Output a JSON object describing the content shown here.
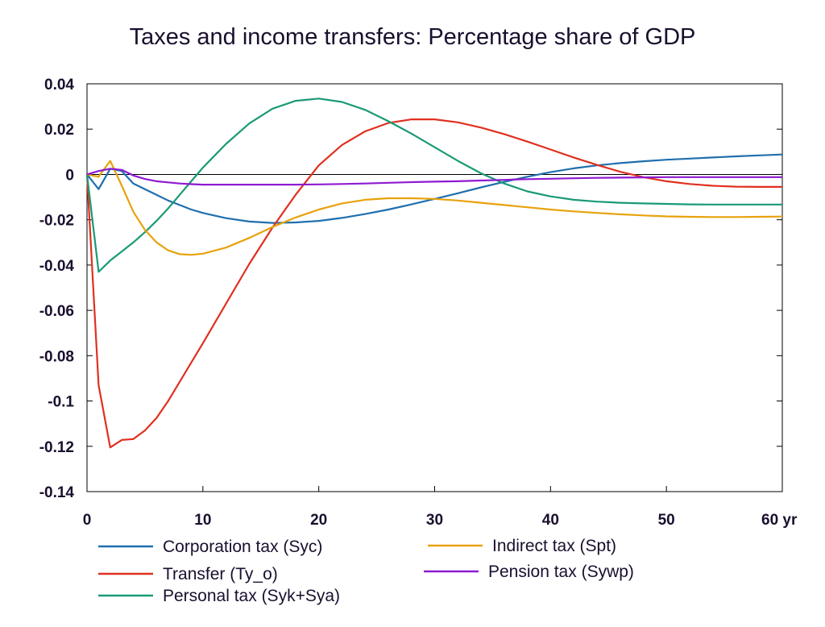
{
  "chart_data": {
    "type": "line",
    "title": "Taxes and income transfers: Percentage share of GDP",
    "xlabel": "",
    "ylabel": "",
    "x_unit_suffix": "yr",
    "xlim": [
      0,
      60
    ],
    "ylim": [
      -0.14,
      0.04
    ],
    "x_ticks": [
      0,
      10,
      20,
      30,
      40,
      50,
      60
    ],
    "x_tick_labels": [
      "0",
      "10",
      "20",
      "30",
      "40",
      "50",
      "60 yr"
    ],
    "y_ticks": [
      0.04,
      0.02,
      0,
      -0.02,
      -0.04,
      -0.06,
      -0.08,
      -0.1,
      -0.12,
      -0.14
    ],
    "y_tick_labels": [
      "0.04",
      "0.02",
      "0",
      "-0.02",
      "-0.04",
      "-0.06",
      "-0.08",
      "-0.1",
      "-0.12",
      "-0.14"
    ],
    "grid": false,
    "zero_line": true,
    "legend_position": "bottom",
    "x": [
      0,
      1,
      2,
      3,
      4,
      5,
      6,
      7,
      8,
      9,
      10,
      12,
      14,
      16,
      18,
      20,
      22,
      24,
      26,
      28,
      30,
      32,
      34,
      36,
      38,
      40,
      42,
      44,
      46,
      48,
      50,
      52,
      54,
      56,
      58,
      60
    ],
    "series": [
      {
        "name": "Corporation tax (Syc)",
        "color": "#1f6fae",
        "values": [
          0,
          -0.0065,
          0.0025,
          0.0015,
          -0.004,
          -0.0065,
          -0.009,
          -0.0115,
          -0.0135,
          -0.0155,
          -0.017,
          -0.0193,
          -0.0208,
          -0.0214,
          -0.0212,
          -0.0205,
          -0.0192,
          -0.0175,
          -0.0155,
          -0.0132,
          -0.0108,
          -0.0083,
          -0.0057,
          -0.0033,
          -0.001,
          0.001,
          0.0027,
          0.004,
          0.005,
          0.0058,
          0.0065,
          0.007,
          0.0075,
          0.008,
          0.0084,
          0.0088
        ]
      },
      {
        "name": "Transfer (Ty_o)",
        "color": "#e03020",
        "values": [
          0,
          -0.093,
          -0.1205,
          -0.1172,
          -0.1168,
          -0.113,
          -0.1075,
          -0.1,
          -0.0915,
          -0.083,
          -0.0745,
          -0.057,
          -0.0395,
          -0.0235,
          -0.009,
          0.004,
          0.013,
          0.019,
          0.0227,
          0.0243,
          0.0243,
          0.023,
          0.0207,
          0.0178,
          0.0145,
          0.011,
          0.0075,
          0.0042,
          0.0012,
          -0.0012,
          -0.003,
          -0.0042,
          -0.005,
          -0.0054,
          -0.0055,
          -0.0055
        ]
      },
      {
        "name": "Personal tax (Syk+Sya)",
        "color": "#1a9a76",
        "values": [
          0,
          -0.043,
          -0.038,
          -0.034,
          -0.03,
          -0.0255,
          -0.0205,
          -0.015,
          -0.009,
          -0.003,
          0.003,
          0.0135,
          0.0225,
          0.029,
          0.0325,
          0.0335,
          0.032,
          0.0285,
          0.0235,
          0.018,
          0.012,
          0.006,
          0.0005,
          -0.004,
          -0.0075,
          -0.0097,
          -0.0112,
          -0.012,
          -0.0125,
          -0.0128,
          -0.013,
          -0.0132,
          -0.0133,
          -0.0133,
          -0.0133,
          -0.0133
        ]
      },
      {
        "name": "Indirect tax (Spt)",
        "color": "#e8a20c",
        "values": [
          0,
          -0.001,
          0.006,
          -0.005,
          -0.0165,
          -0.0245,
          -0.03,
          -0.0335,
          -0.0352,
          -0.0355,
          -0.035,
          -0.0323,
          -0.028,
          -0.0232,
          -0.019,
          -0.0155,
          -0.0128,
          -0.0112,
          -0.0105,
          -0.0105,
          -0.0108,
          -0.0115,
          -0.0125,
          -0.0135,
          -0.0145,
          -0.0155,
          -0.0163,
          -0.017,
          -0.0176,
          -0.0181,
          -0.0185,
          -0.0187,
          -0.0188,
          -0.0188,
          -0.0187,
          -0.0186
        ]
      },
      {
        "name": "Pension tax (Sywp)",
        "color": "#8e1ad0",
        "values": [
          0,
          0.0015,
          0.0025,
          0.002,
          -0.0005,
          -0.002,
          -0.003,
          -0.0035,
          -0.004,
          -0.0043,
          -0.0045,
          -0.0045,
          -0.0045,
          -0.0045,
          -0.0045,
          -0.0044,
          -0.0042,
          -0.004,
          -0.0037,
          -0.0034,
          -0.0032,
          -0.003,
          -0.0027,
          -0.0024,
          -0.0021,
          -0.0019,
          -0.0017,
          -0.0015,
          -0.0014,
          -0.0013,
          -0.0012,
          -0.0012,
          -0.0012,
          -0.0012,
          -0.0012,
          -0.0012
        ]
      }
    ]
  }
}
